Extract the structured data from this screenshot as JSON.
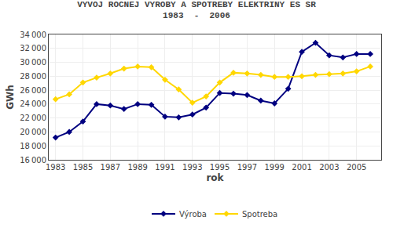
{
  "chart_data": {
    "type": "line",
    "title": "VYVOJ ROCNEJ VYROBY A SPOTREBY ELEKTRINY ES SR",
    "subtitle": "1983  -  2006",
    "x_label": "rok",
    "y_label": "GWh",
    "x": [
      1983,
      1984,
      1985,
      1986,
      1987,
      1988,
      1989,
      1990,
      1991,
      1992,
      1993,
      1994,
      1995,
      1996,
      1997,
      1998,
      1999,
      2000,
      2001,
      2002,
      2003,
      2004,
      2005,
      2006
    ],
    "series": [
      {
        "name": "Výroba",
        "color": "#000080",
        "marker": "diamond",
        "values": [
          19200,
          20000,
          21500,
          24000,
          23800,
          23300,
          24000,
          23900,
          22200,
          22100,
          22500,
          23500,
          25600,
          25500,
          25300,
          24500,
          24100,
          26200,
          31500,
          32800,
          31000,
          30700,
          31200,
          31200
        ]
      },
      {
        "name": "Spotreba",
        "color": "#FFD700",
        "marker": "diamond",
        "values": [
          24700,
          25400,
          27100,
          27800,
          28400,
          29100,
          29400,
          29300,
          27500,
          26100,
          24200,
          25100,
          27100,
          28500,
          28400,
          28200,
          27900,
          27900,
          28000,
          28200,
          28300,
          28400,
          28700,
          29400
        ]
      }
    ],
    "xlim": [
      1982.5,
      2006.8
    ],
    "xticks": [
      1983,
      1985,
      1987,
      1989,
      1991,
      1993,
      1995,
      1997,
      1999,
      2001,
      2003,
      2005
    ],
    "ylim": [
      16000,
      34000
    ],
    "yticks": [
      {
        "value": 16000,
        "label": "16 000"
      },
      {
        "value": 18000,
        "label": "18 000"
      },
      {
        "value": 20000,
        "label": "20 000"
      },
      {
        "value": 22000,
        "label": "22 000"
      },
      {
        "value": 24000,
        "label": "24 000"
      },
      {
        "value": 26000,
        "label": "26 000"
      },
      {
        "value": 28000,
        "label": "28 000"
      },
      {
        "value": 30000,
        "label": "30 000"
      },
      {
        "value": 32000,
        "label": "32 000"
      },
      {
        "value": 34000,
        "label": "34 000"
      }
    ],
    "grid": true,
    "legend": "bottom"
  }
}
